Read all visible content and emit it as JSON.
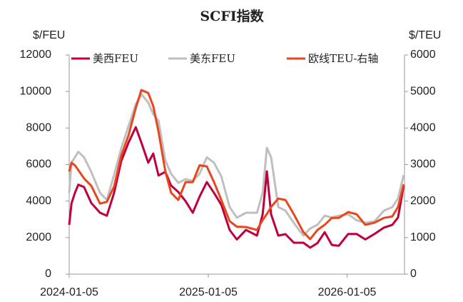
{
  "chart_data": {
    "type": "line",
    "title": "SCFI指数",
    "ylabel": "$/FEU",
    "y2label": "$/TEU",
    "x": [
      "2024-01-05",
      "2024-01-11",
      "2024-01-20",
      "2024-01-29",
      "2024-02-13",
      "2024-03-03",
      "2024-03-26",
      "2024-04-13",
      "2024-05-02",
      "2024-05-21",
      "2024-06-09",
      "2024-06-28",
      "2024-07-13",
      "2024-07-31",
      "2024-08-13",
      "2024-08-27",
      "2024-09-14",
      "2024-09-29",
      "2024-10-18",
      "2024-11-06",
      "2024-11-25",
      "2024-12-13",
      "2025-01-01",
      "2025-01-20",
      "2025-02-08",
      "2025-03-02",
      "2025-03-21",
      "2025-04-14",
      "2025-05-13",
      "2025-05-28",
      "2025-06-08",
      "2025-06-19",
      "2025-07-08",
      "2025-07-27",
      "2025-08-18",
      "2025-09-12",
      "2025-09-30",
      "2025-10-19",
      "2025-11-07",
      "2025-11-26",
      "2025-12-14",
      "2026-01-08",
      "2026-01-30",
      "2026-02-22",
      "2026-03-18",
      "2026-04-12",
      "2026-05-04",
      "2026-05-19",
      "2026-06-03"
    ],
    "series": [
      {
        "name": "美西FEU",
        "color": "#c0003c",
        "axis": "y",
        "values": [
          2700,
          3870,
          4450,
          4900,
          4770,
          3900,
          3360,
          3200,
          4450,
          6200,
          7200,
          8050,
          7200,
          6100,
          6600,
          5400,
          5600,
          4850,
          4500,
          4000,
          3360,
          4250,
          5040,
          4450,
          3800,
          2420,
          1900,
          2420,
          2110,
          3280,
          5630,
          3280,
          2110,
          2190,
          1720,
          1720,
          1450,
          1700,
          2300,
          1600,
          1550,
          2200,
          2200,
          1900,
          2200,
          2550,
          2700,
          3100,
          4850
        ]
      },
      {
        "name": "美东FEU",
        "color": "#bfbfbf",
        "axis": "y",
        "values": [
          4450,
          6100,
          6400,
          6700,
          6400,
          5600,
          4450,
          4070,
          5430,
          6900,
          8100,
          9300,
          9850,
          9400,
          8760,
          8400,
          6220,
          5500,
          5000,
          5200,
          5100,
          5500,
          6400,
          6100,
          5350,
          3670,
          3090,
          3360,
          3360,
          4450,
          6920,
          6400,
          3670,
          3480,
          2800,
          2110,
          2500,
          2700,
          3200,
          3100,
          3200,
          3280,
          2950,
          2810,
          2890,
          3480,
          3670,
          4140,
          5430
        ]
      },
      {
        "name": "欧线TEU-右轴",
        "color": "#e8461e",
        "axis": "y2",
        "values": [
          2810,
          3050,
          2980,
          2850,
          2620,
          2420,
          1930,
          1980,
          2400,
          3250,
          3800,
          4550,
          5040,
          4960,
          4600,
          3900,
          2810,
          2230,
          2030,
          2520,
          2520,
          2980,
          2950,
          2520,
          2030,
          1450,
          1300,
          1290,
          1210,
          1480,
          1650,
          1840,
          2070,
          2030,
          1640,
          1150,
          960,
          1210,
          1350,
          1540,
          1540,
          1700,
          1640,
          1350,
          1410,
          1540,
          1580,
          1840,
          2460
        ]
      }
    ],
    "xlim": [
      "2024-01-05",
      "2026-06-05"
    ],
    "xticks": [
      "2024-01-05",
      "2025-01-05",
      "2026-01-05"
    ],
    "ylim": [
      0,
      12000
    ],
    "yticks": [
      0,
      2000,
      4000,
      6000,
      8000,
      10000,
      12000
    ],
    "y2lim": [
      0,
      6000
    ],
    "y2ticks": [
      0,
      1000,
      2000,
      3000,
      4000,
      5000,
      6000
    ],
    "grid": false,
    "legend": "top"
  }
}
